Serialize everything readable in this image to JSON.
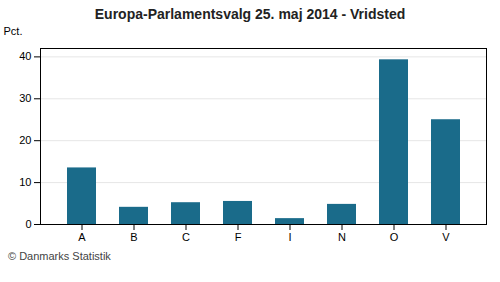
{
  "chart_data": {
    "type": "bar",
    "title": "Europa-Parlamentsvalg 25. maj 2014 - Vridsted",
    "categories": [
      "A",
      "B",
      "C",
      "F",
      "I",
      "N",
      "O",
      "V"
    ],
    "values": [
      13.5,
      4.1,
      5.2,
      5.5,
      1.4,
      4.8,
      39.3,
      25.0
    ],
    "color": "#1a6b8a",
    "ylabel": "Pct.",
    "caption": "© Danmarks Statistik",
    "ylim": [
      0,
      42
    ],
    "yticks": [
      0,
      10,
      20,
      30,
      40
    ],
    "grid": true
  }
}
